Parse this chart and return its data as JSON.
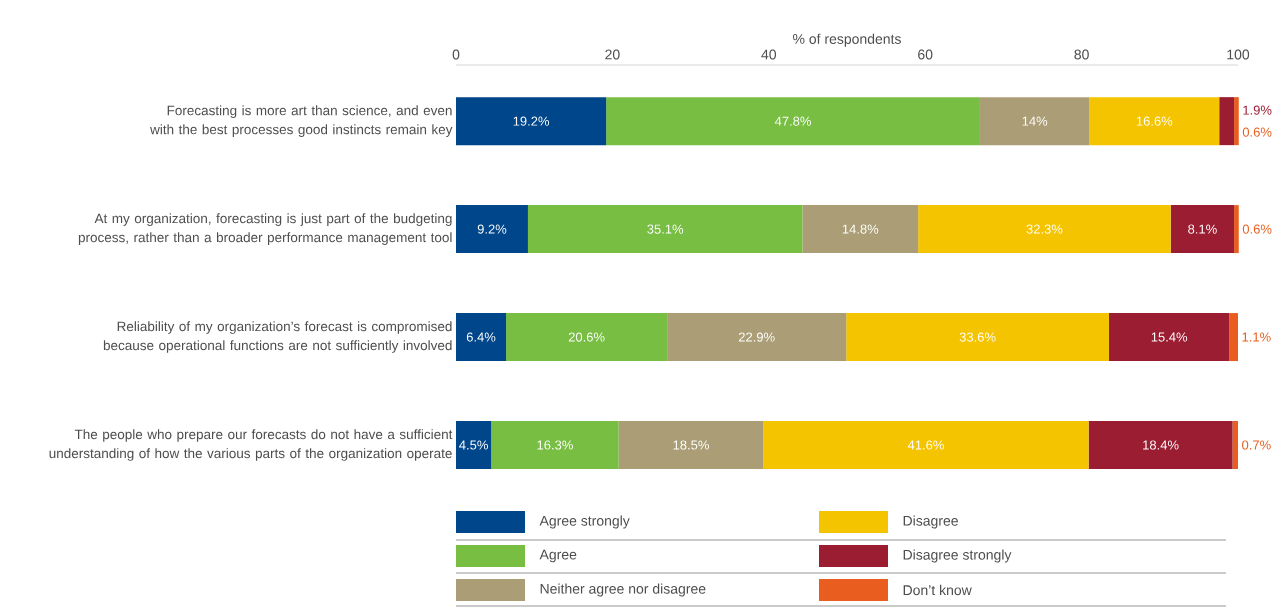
{
  "chart_data": {
    "type": "bar",
    "orientation": "horizontal",
    "stacked": true,
    "xlabel": "% of respondents",
    "xlim": [
      0,
      100
    ],
    "xticks": [
      0,
      20,
      40,
      60,
      80,
      100
    ],
    "grid": false,
    "legend": "bottom",
    "categories": [
      "Forecasting is more art than science, and even with the best processes good instincts remain key",
      "At my organization, forecasting is just part of the budgeting process, rather than a broader performance management tool",
      "Reliability of my organization’s forecast is compromised because operational functions are not sufficiently involved",
      "The people who prepare our forecasts do not have a sufficient understanding of how the various parts of the organization operate"
    ],
    "series": [
      {
        "name": "Agree strongly",
        "color": "#00468b",
        "values": [
          19.2,
          9.2,
          6.4,
          4.5
        ],
        "value_labels": [
          "19.2%",
          "9.2%",
          "6.4%",
          "4.5%"
        ]
      },
      {
        "name": "Agree",
        "color": "#78be43",
        "values": [
          47.8,
          35.1,
          20.6,
          16.3
        ],
        "value_labels": [
          "47.8%",
          "35.1%",
          "20.6%",
          "16.3%"
        ]
      },
      {
        "name": "Neither agree nor disagree",
        "color": "#ab9e76",
        "values": [
          14,
          14.8,
          22.9,
          18.5
        ],
        "value_labels": [
          "14%",
          "14.8%",
          "22.9%",
          "18.5%"
        ]
      },
      {
        "name": "Disagree",
        "color": "#f5c400",
        "values": [
          16.6,
          32.3,
          33.6,
          41.6
        ],
        "value_labels": [
          "16.6%",
          "32.3%",
          "33.6%",
          "41.6%"
        ]
      },
      {
        "name": "Disagree strongly",
        "color": "#9b1d32",
        "values": [
          1.9,
          8.1,
          15.4,
          18.4
        ],
        "value_labels": [
          "1.9%",
          "8.1%",
          "15.4%",
          "18.4%"
        ]
      },
      {
        "name": "Don’t know",
        "color": "#e95e1f",
        "values": [
          0.6,
          0.6,
          1.1,
          0.7
        ],
        "value_labels": [
          "0.6%",
          "0.6%",
          "1.1%",
          "0.7%"
        ]
      }
    ]
  }
}
